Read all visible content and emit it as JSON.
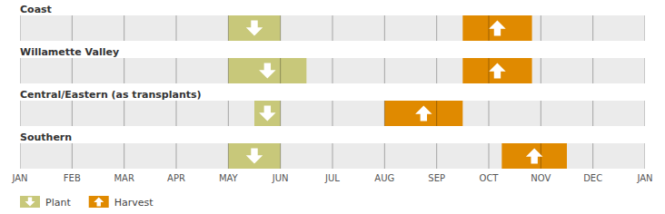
{
  "chart_data": {
    "type": "range_bar",
    "orientation": "horizontal",
    "categories": [
      "Coast",
      "Willamette Valley",
      "Central/Eastern (as transplants)",
      "Southern"
    ],
    "series": [
      {
        "name": "Plant",
        "color": "#c8c87a",
        "marker": "arrow_down",
        "starts": [
          4.0,
          4.0,
          4.5,
          4.0
        ],
        "ends": [
          5.0,
          5.5,
          5.0,
          5.0
        ]
      },
      {
        "name": "Harvest",
        "color": "#e08a00",
        "marker": "arrow_up",
        "starts": [
          8.5,
          8.5,
          7.0,
          9.25
        ],
        "ends": [
          9.83,
          9.83,
          8.5,
          10.5
        ]
      }
    ],
    "xlim": [
      0,
      12
    ],
    "xticks": [
      {
        "value": 0,
        "label": "JAN"
      },
      {
        "value": 1,
        "label": "FEB"
      },
      {
        "value": 2,
        "label": "MAR"
      },
      {
        "value": 3,
        "label": "APR"
      },
      {
        "value": 4,
        "label": "MAY"
      },
      {
        "value": 5,
        "label": "JUN"
      },
      {
        "value": 6,
        "label": "JUL"
      },
      {
        "value": 7,
        "label": "AUG"
      },
      {
        "value": 8,
        "label": "SEP"
      },
      {
        "value": 9,
        "label": "OCT"
      },
      {
        "value": 10,
        "label": "NOV"
      },
      {
        "value": 11,
        "label": "DEC"
      },
      {
        "value": 12,
        "label": "JAN"
      }
    ],
    "grid": true,
    "legend": "lower left"
  }
}
